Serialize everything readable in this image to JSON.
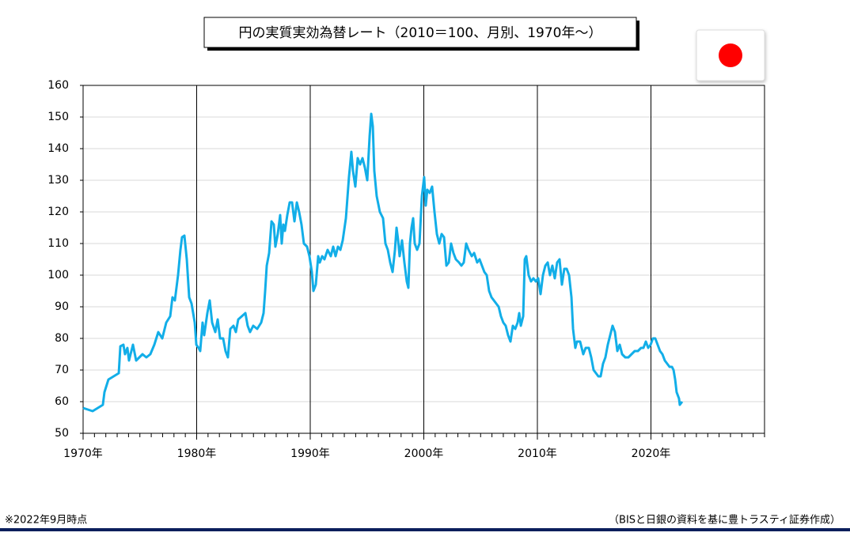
{
  "chart_data": {
    "type": "line",
    "title": "円の実質実効為替レート（2010＝100、月別、1970年～）",
    "note": "※2022年9月時点",
    "source": "（BISと日銀の資料を基に豊トラスティ証券作成）",
    "color": "#12aee8",
    "grid": true,
    "xlim": [
      1970,
      2030
    ],
    "xticks": [
      {
        "value": 1970,
        "label": "1970年"
      },
      {
        "value": 1980,
        "label": "1980年"
      },
      {
        "value": 1990,
        "label": "1990年"
      },
      {
        "value": 2000,
        "label": "2000年"
      },
      {
        "value": 2010,
        "label": "2010年"
      },
      {
        "value": 2020,
        "label": "2020年"
      }
    ],
    "ylim": [
      50,
      160
    ],
    "yticks": [
      50,
      60,
      70,
      80,
      90,
      100,
      110,
      120,
      130,
      140,
      150,
      160
    ],
    "x": [
      1970.0,
      1970.84,
      1971.74,
      1971.88,
      1972.23,
      1973.14,
      1973.28,
      1973.55,
      1973.69,
      1973.9,
      1974.04,
      1974.39,
      1974.67,
      1975.23,
      1975.57,
      1975.92,
      1976.27,
      1976.62,
      1976.97,
      1977.32,
      1977.67,
      1977.87,
      1978.08,
      1978.36,
      1978.57,
      1978.71,
      1978.92,
      1979.13,
      1979.34,
      1979.55,
      1979.83,
      1979.97,
      1980.17,
      1980.31,
      1980.52,
      1980.66,
      1980.94,
      1981.15,
      1981.36,
      1981.64,
      1981.85,
      1982.06,
      1982.33,
      1982.54,
      1982.75,
      1982.96,
      1983.24,
      1983.45,
      1983.66,
      1984.29,
      1984.49,
      1984.7,
      1984.98,
      1985.33,
      1985.68,
      1985.89,
      1986.03,
      1986.17,
      1986.38,
      1986.59,
      1986.79,
      1986.93,
      1987.14,
      1987.35,
      1987.49,
      1987.63,
      1987.77,
      1987.98,
      1988.19,
      1988.4,
      1988.61,
      1988.82,
      1989.02,
      1989.23,
      1989.44,
      1989.72,
      1989.93,
      1990.14,
      1990.28,
      1990.49,
      1990.7,
      1990.84,
      1991.05,
      1991.25,
      1991.53,
      1991.81,
      1992.02,
      1992.23,
      1992.44,
      1992.65,
      1992.86,
      1993.14,
      1993.41,
      1993.62,
      1993.76,
      1993.97,
      1994.18,
      1994.39,
      1994.6,
      1994.81,
      1995.02,
      1995.23,
      1995.37,
      1995.51,
      1995.64,
      1995.85,
      1996.13,
      1996.41,
      1996.62,
      1996.83,
      1997.04,
      1997.25,
      1997.46,
      1997.6,
      1997.74,
      1997.87,
      1998.08,
      1998.29,
      1998.5,
      1998.64,
      1998.78,
      1998.92,
      1999.06,
      1999.2,
      1999.41,
      1999.62,
      1999.83,
      2000.03,
      2000.17,
      2000.31,
      2000.52,
      2000.73,
      2000.94,
      2001.15,
      2001.36,
      2001.57,
      2001.78,
      2001.99,
      2002.2,
      2002.4,
      2002.61,
      2002.82,
      2003.1,
      2003.31,
      2003.52,
      2003.73,
      2003.94,
      2004.22,
      2004.43,
      2004.7,
      2004.91,
      2005.12,
      2005.33,
      2005.54,
      2005.75,
      2005.96,
      2006.38,
      2006.59,
      2006.79,
      2007.0,
      2007.21,
      2007.42,
      2007.63,
      2007.84,
      2008.05,
      2008.26,
      2008.4,
      2008.54,
      2008.75,
      2008.89,
      2009.02,
      2009.23,
      2009.44,
      2009.65,
      2009.86,
      2010.07,
      2010.28,
      2010.49,
      2010.7,
      2010.91,
      2011.11,
      2011.32,
      2011.53,
      2011.74,
      2011.95,
      2012.16,
      2012.37,
      2012.58,
      2012.79,
      2013.0,
      2013.14,
      2013.34,
      2013.48,
      2013.76,
      2014.04,
      2014.25,
      2014.53,
      2014.74,
      2014.95,
      2015.37,
      2015.57,
      2015.78,
      2015.99,
      2016.2,
      2016.41,
      2016.62,
      2016.83,
      2017.04,
      2017.25,
      2017.46,
      2017.74,
      2018.01,
      2018.29,
      2018.57,
      2018.85,
      2019.13,
      2019.34,
      2019.55,
      2019.76,
      2019.97,
      2020.17,
      2020.38,
      2020.59,
      2020.8,
      2021.01,
      2021.22,
      2021.43,
      2021.64,
      2021.85,
      2021.99,
      2022.13,
      2022.26,
      2022.47,
      2022.54,
      2022.75
    ],
    "values": [
      58,
      57,
      59,
      63,
      67,
      69,
      77.5,
      78,
      75,
      77,
      73,
      78,
      73,
      75,
      74,
      75,
      78,
      82,
      80,
      85,
      87,
      93,
      92,
      100,
      108,
      112,
      112.5,
      105,
      93,
      91,
      85,
      78,
      77,
      76,
      85,
      81,
      88,
      92,
      85,
      82,
      86,
      80,
      80,
      76,
      74,
      83,
      84,
      82,
      86,
      88,
      84,
      82,
      84,
      83,
      85,
      88,
      95,
      103,
      107,
      117,
      116,
      109,
      113,
      119,
      110,
      116,
      114,
      119,
      123,
      123,
      117,
      123,
      120,
      116,
      110,
      109,
      106,
      101,
      95,
      97,
      106,
      104,
      106,
      105,
      108,
      106,
      109,
      106,
      109,
      108,
      111,
      118,
      131,
      139,
      133,
      128,
      137,
      135,
      137,
      134,
      130,
      144,
      151,
      147,
      133,
      125,
      120,
      118,
      110,
      108,
      104,
      101,
      108,
      115,
      111,
      106,
      111,
      104,
      98,
      96,
      110,
      115,
      118,
      110,
      108,
      110,
      125,
      131,
      122,
      127,
      126,
      128,
      120,
      113,
      110,
      113,
      112,
      103,
      104,
      110,
      107,
      105,
      104,
      103,
      104,
      110,
      108,
      106,
      107,
      104,
      105,
      103,
      101,
      100,
      95,
      93,
      91,
      90,
      87,
      85,
      84,
      81,
      79,
      84,
      83,
      85,
      88,
      84,
      87,
      105,
      106,
      100,
      98,
      99,
      98,
      99,
      94,
      100,
      103,
      104,
      100,
      103,
      99,
      104,
      105,
      97,
      102,
      102,
      100,
      93,
      83,
      77,
      79,
      79,
      75,
      77,
      77,
      74,
      70,
      68,
      68,
      72,
      74,
      78,
      81,
      84,
      82,
      76,
      78,
      75,
      74,
      74,
      75,
      76,
      76,
      77,
      77,
      79,
      77,
      78,
      80,
      80,
      78,
      76,
      75,
      73,
      72,
      71,
      71,
      70,
      67,
      63,
      61,
      59,
      60
    ]
  }
}
